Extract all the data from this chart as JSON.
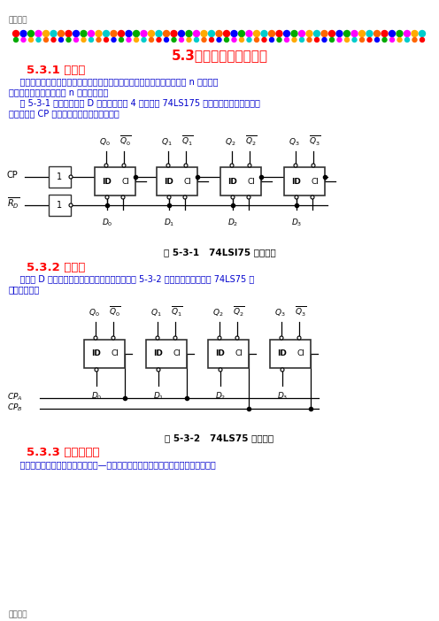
{
  "title_main": "5.3寄存器和移位寄存器",
  "section1_title": "5.3.1 寄存器",
  "section1_text1": "    寄存器用于寄存一组二值代码，一个触发器能存储一位二值代码，所以用 n 个触发器\n组成的寄存器能储存一组 n 位二值代码。",
  "section1_text2": "    图 5-3-1 所示是由边沿 D 触发器组成的 4 位寄存器 74LS175 的逻辑电路图，其输出状\n态仅取决于 CP 上升沿到达时刻的输入状态。",
  "fig1_caption": "图 5-3-1   74LSl75 的逻辑图",
  "section2_title": "5.3.2 锁存器",
  "section2_text1": "    由同步 D 触发器组成的寄存器，称为锁存器。图 5-3-2 所示是双二位锁存器 74LS75 的\n逻辑电路图。",
  "fig2_caption": "图 5-3-2   74LS75 的逻辑图",
  "section3_title": "5.3.3 移位寄存器",
  "section3_text1": "    移位寄存器不但具有寄存器的功能—可以暂存数据，还可以在移位脉冲的作用下数码",
  "header_text": "精品文档",
  "footer_text": "精品文档",
  "bg_color": "#ffffff",
  "text_color": "#000000",
  "title_color": "#ff0000",
  "section_color": "#ff0000",
  "body_color": "#0000cd",
  "diagram_color": "#000000"
}
